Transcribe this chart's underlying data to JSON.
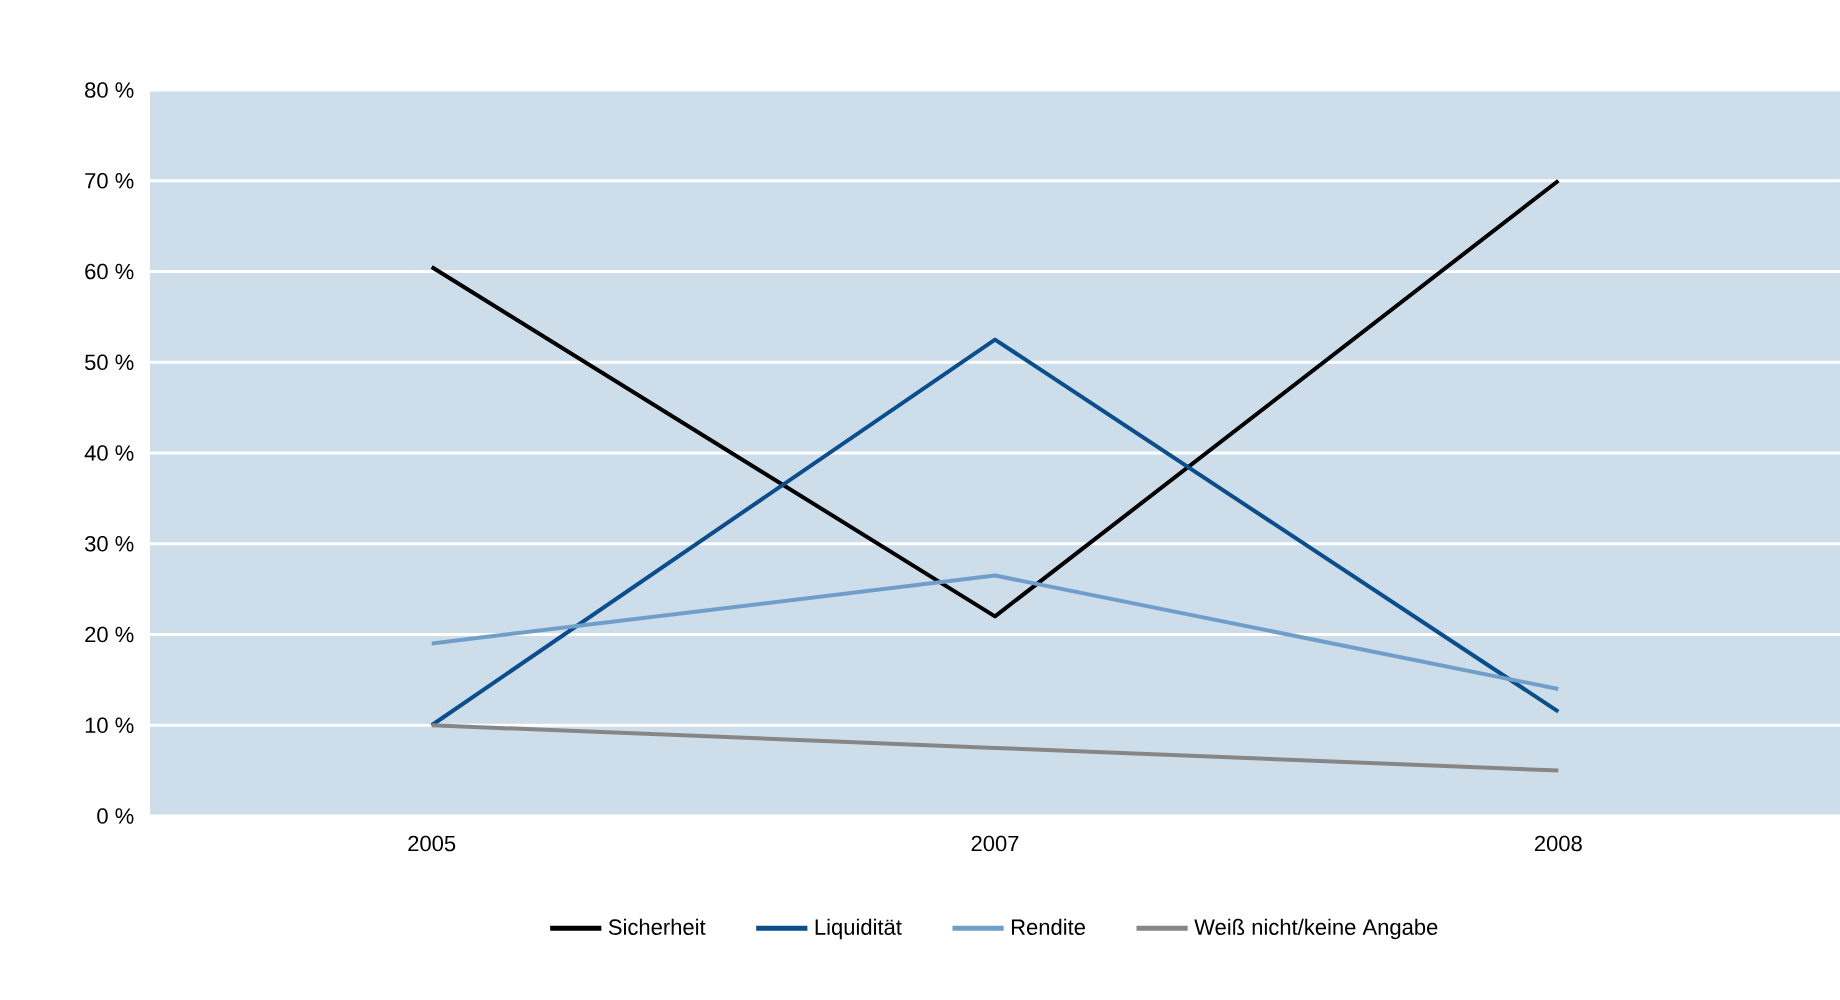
{
  "chart_data": {
    "type": "line",
    "categories": [
      "2005",
      "2007",
      "2008"
    ],
    "series": [
      {
        "name": "Sicherheit",
        "color": "#000000",
        "values": [
          60.5,
          22,
          70
        ]
      },
      {
        "name": "Liquidität",
        "color": "#0a4f8c",
        "values": [
          10,
          52.5,
          11.5
        ]
      },
      {
        "name": "Rendite",
        "color": "#6f9fc9",
        "values": [
          19,
          26.5,
          14
        ]
      },
      {
        "name": "Weiß nicht/keine Angabe",
        "color": "#868686",
        "values": [
          10,
          7.5,
          5
        ]
      }
    ],
    "ylim": [
      0,
      80
    ],
    "yticks": [
      {
        "value": 0,
        "label": "0 %"
      },
      {
        "value": 10,
        "label": "10 %"
      },
      {
        "value": 20,
        "label": "20 %"
      },
      {
        "value": 30,
        "label": "30 %"
      },
      {
        "value": 40,
        "label": "40 %"
      },
      {
        "value": 50,
        "label": "50 %"
      },
      {
        "value": 60,
        "label": "60 %"
      },
      {
        "value": 70,
        "label": "70 %"
      },
      {
        "value": 80,
        "label": "80 %"
      }
    ],
    "grid": "y",
    "legend": "bottom",
    "marker": "none",
    "line_style": "solid"
  }
}
